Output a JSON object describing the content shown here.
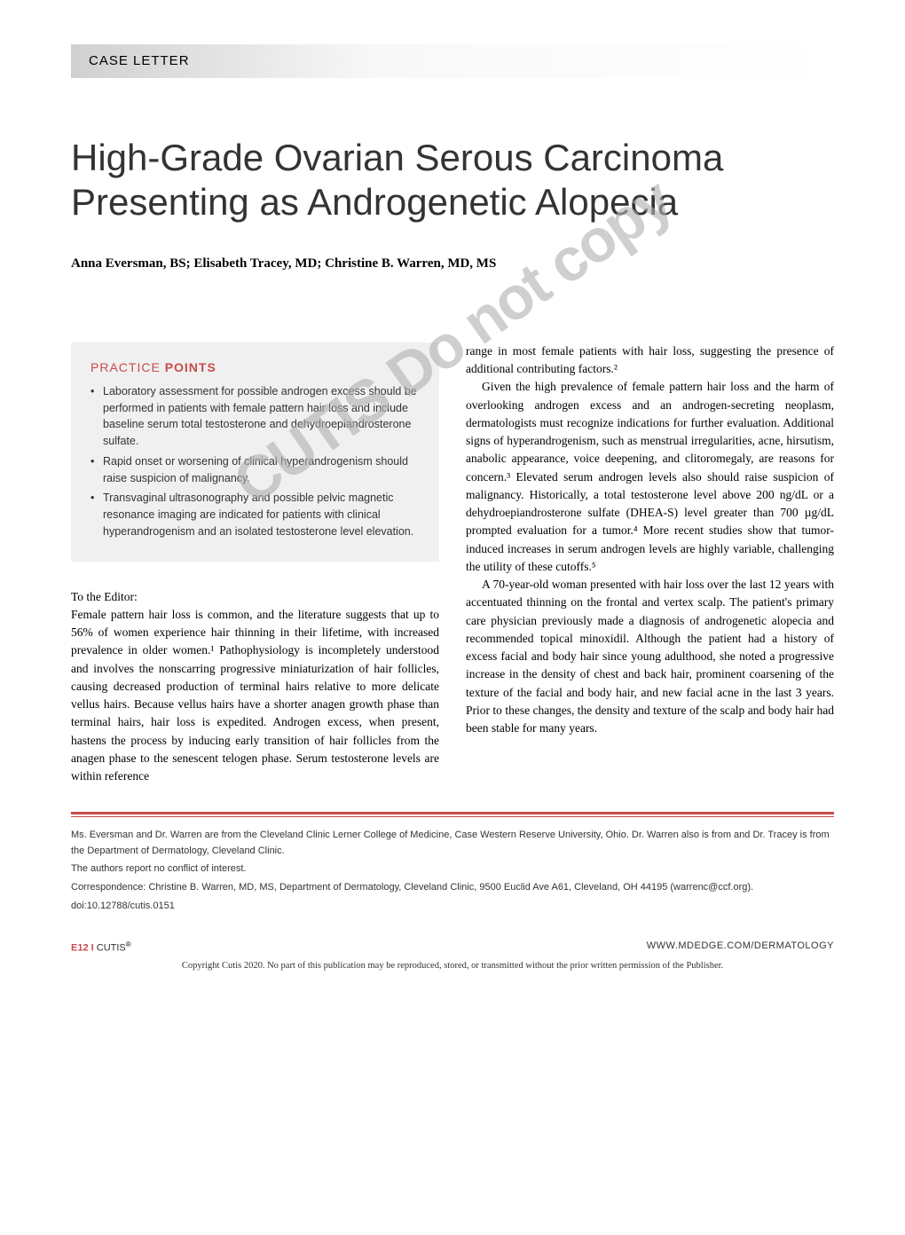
{
  "header": {
    "label": "CASE LETTER"
  },
  "title": "High-Grade Ovarian Serous Carcinoma Presenting as Androgenetic Alopecia",
  "authors": "Anna Eversman, BS; Elisabeth Tracey, MD; Christine B. Warren, MD, MS",
  "watermark": "CUTIS Do not copy",
  "practice": {
    "title_word1": "PRACTICE",
    "title_word2": "POINTS",
    "points": [
      "Laboratory assessment for possible androgen excess should be performed in patients with female pattern hair loss and include baseline serum total testosterone and dehydroepiandrosterone sulfate.",
      "Rapid onset or worsening of clinical hyperandrogenism should raise suspicion of malignancy.",
      "Transvaginal ultrasonography and possible pelvic magnetic resonance imaging are indicated for patients with clinical hyperandrogenism and an isolated testosterone level elevation."
    ]
  },
  "salutation": "To the Editor:",
  "body": {
    "col1_p1": "Female pattern hair loss is common, and the literature suggests that up to 56% of women experience hair thinning in their lifetime, with increased prevalence in older women.¹ Pathophysiology is incompletely understood and involves the nonscarring progressive miniaturization of hair follicles, causing decreased production of terminal hairs relative to more delicate vellus hairs. Because vellus hairs have a shorter anagen growth phase than terminal hairs, hair loss is expedited. Androgen excess, when present, hastens the process by inducing early transition of hair follicles from the anagen phase to the senescent telogen phase. Serum testosterone levels are within reference",
    "col2_p1": "range in most female patients with hair loss, suggesting the presence of additional contributing factors.²",
    "col2_p2": "Given the high prevalence of female pattern hair loss and the harm of overlooking androgen excess and an androgen-secreting neoplasm, dermatologists must recognize indications for further evaluation. Additional signs of hyperandrogenism, such as menstrual irregularities, acne, hirsutism, anabolic appearance, voice deepening, and clitoromegaly, are reasons for concern.³ Elevated serum androgen levels also should raise suspicion of malignancy. Historically, a total testosterone level above 200 ng/dL or a dehydroepiandrosterone sulfate (DHEA-S) level greater than 700 µg/dL prompted evaluation for a tumor.⁴ More recent studies show that tumor-induced increases in serum androgen levels are highly variable, challenging the utility of these cutoffs.⁵",
    "col2_p3": "A 70-year-old woman presented with hair loss over the last 12 years with accentuated thinning on the frontal and vertex scalp. The patient's primary care physician previously made a diagnosis of androgenetic alopecia and recommended topical minoxidil. Although the patient had a history of excess facial and body hair since young adulthood, she noted a progressive increase in the density of chest and back hair, prominent coarsening of the texture of the facial and body hair, and new facial acne in the last 3 years. Prior to these changes, the density and texture of the scalp and body hair had been stable for many years."
  },
  "footer": {
    "affiliation": "Ms. Eversman and Dr. Warren are from the Cleveland Clinic Lerner College of Medicine, Case Western Reserve University, Ohio. Dr. Warren also is from and Dr. Tracey is from the Department of Dermatology, Cleveland Clinic.",
    "conflict": "The authors report no conflict of interest.",
    "correspondence": "Correspondence: Christine B. Warren, MD, MS, Department of Dermatology, Cleveland Clinic, 9500 Euclid Ave A61, Cleveland, OH 44195 (warrenc@ccf.org).",
    "doi": "doi:10.12788/cutis.0151"
  },
  "pagefoot": {
    "page_number": "E12",
    "separator": "I",
    "journal": "CUTIS",
    "reg": "®",
    "website": "WWW.MDEDGE.COM/DERMATOLOGY"
  },
  "copyright": "Copyright Cutis 2020. No part of this publication may be reproduced, stored, or transmitted without the prior written permission of the Publisher.",
  "colors": {
    "accent": "#c84b4b",
    "text": "#000000",
    "secondary_text": "#333333",
    "box_bg": "#f0f0f0",
    "watermark": "#b0b0b0"
  }
}
